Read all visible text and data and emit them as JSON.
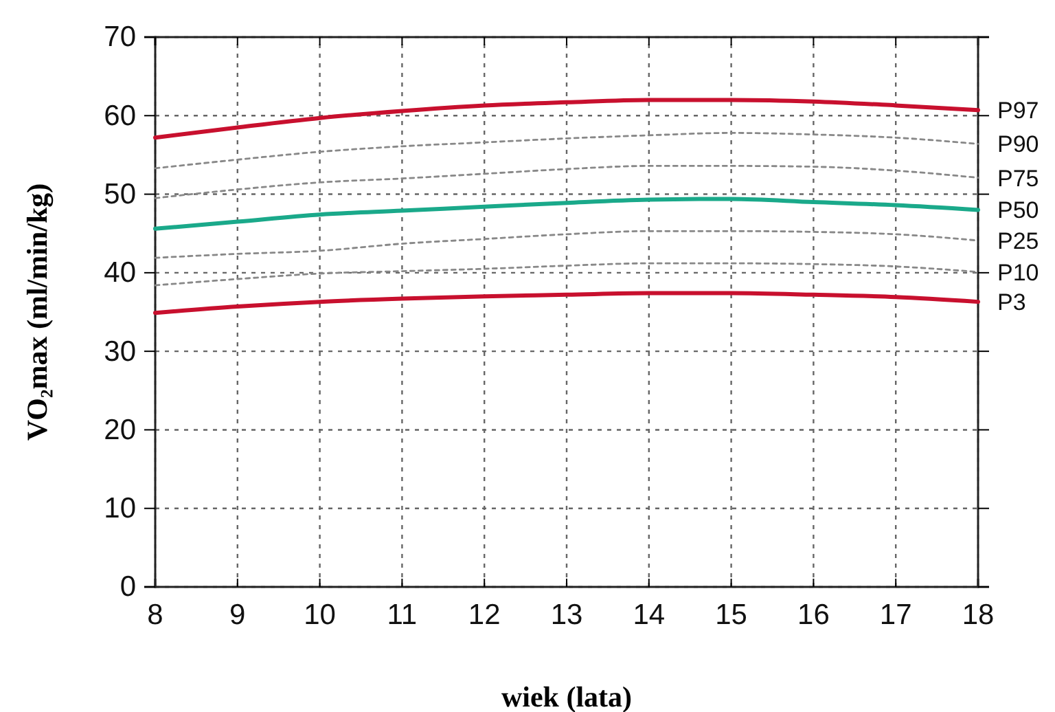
{
  "chart_data": {
    "type": "line",
    "xlabel": "wiek (lata)",
    "ylabel": "VO₂max (ml/min/kg)",
    "x": [
      8,
      9,
      10,
      11,
      12,
      13,
      14,
      15,
      16,
      17,
      18
    ],
    "xlim": [
      8,
      18
    ],
    "xticks": [
      8,
      9,
      10,
      11,
      12,
      13,
      14,
      15,
      16,
      17,
      18
    ],
    "ylim": [
      0,
      70
    ],
    "yticks": [
      0,
      10,
      20,
      30,
      40,
      50,
      60,
      70
    ],
    "grid": true,
    "marker": "none",
    "series": [
      {
        "name": "P97",
        "color": "#c8102e",
        "line_style": "solid",
        "values": [
          57.2,
          58.5,
          59.7,
          60.6,
          61.3,
          61.7,
          62.0,
          62.0,
          61.8,
          61.3,
          60.7
        ]
      },
      {
        "name": "P90",
        "color": "#888888",
        "line_style": "dotted",
        "values": [
          53.3,
          54.4,
          55.4,
          56.1,
          56.6,
          57.1,
          57.5,
          57.8,
          57.6,
          57.2,
          56.4
        ]
      },
      {
        "name": "P75",
        "color": "#888888",
        "line_style": "dotted",
        "values": [
          49.5,
          50.6,
          51.5,
          52.0,
          52.6,
          53.2,
          53.6,
          53.6,
          53.5,
          53.0,
          52.1
        ]
      },
      {
        "name": "P50",
        "color": "#1aa98a",
        "line_style": "solid",
        "values": [
          45.6,
          46.5,
          47.4,
          47.9,
          48.4,
          48.9,
          49.3,
          49.4,
          49.0,
          48.6,
          48.0
        ]
      },
      {
        "name": "P25",
        "color": "#888888",
        "line_style": "dotted",
        "values": [
          41.9,
          42.4,
          42.8,
          43.7,
          44.3,
          44.9,
          45.3,
          45.3,
          45.2,
          44.9,
          44.1
        ]
      },
      {
        "name": "P10",
        "color": "#888888",
        "line_style": "dotted",
        "values": [
          38.4,
          39.2,
          39.9,
          40.2,
          40.5,
          40.9,
          41.2,
          41.2,
          41.1,
          40.8,
          40.1
        ]
      },
      {
        "name": "P3",
        "color": "#c8102e",
        "line_style": "solid",
        "values": [
          34.9,
          35.7,
          36.3,
          36.7,
          37.0,
          37.2,
          37.4,
          37.4,
          37.2,
          36.9,
          36.3
        ]
      }
    ]
  }
}
